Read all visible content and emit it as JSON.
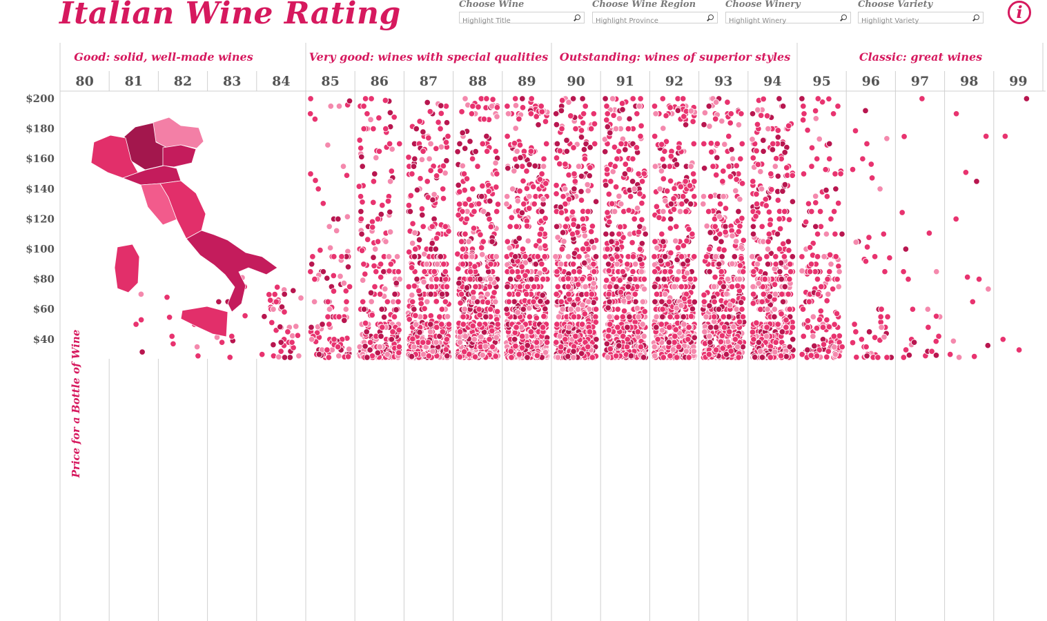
{
  "title": "Italian Wine Rating",
  "filters": [
    {
      "label": "Choose Wine",
      "placeholder": "Highlight Title"
    },
    {
      "label": "Choose Wine Region",
      "placeholder": "Highlight Province"
    },
    {
      "label": "Choose Winery",
      "placeholder": "Highlight Winery"
    },
    {
      "label": "Choose Variety",
      "placeholder": "Highlight Variety"
    }
  ],
  "info_icon": "info-icon",
  "map_icon": "italy-map",
  "colors": {
    "accent": "#d6195e",
    "dot_main": "#e8336f",
    "dot_light": "#f489ad",
    "dot_dark": "#b8164f",
    "map_regions": [
      "#a3174d",
      "#c41c5c",
      "#e22f6a",
      "#f25b8c",
      "#f37fa6"
    ]
  },
  "chart_data": {
    "type": "scatter",
    "ylabel": "Price for a Bottle of Wine",
    "y_ticks": [
      "$200",
      "$180",
      "$160",
      "$140",
      "$120",
      "$100",
      "$80",
      "$60",
      "$40"
    ],
    "y_tick_values": [
      200,
      180,
      160,
      140,
      120,
      100,
      80,
      60,
      40
    ],
    "ylim": [
      27,
      200
    ],
    "x_categories": [
      80,
      81,
      82,
      83,
      84,
      85,
      86,
      87,
      88,
      89,
      90,
      91,
      92,
      93,
      94,
      95,
      96,
      97,
      98,
      99
    ],
    "rating_groups": [
      {
        "label": "Good: solid, well-made wines",
        "scores": [
          80,
          84
        ]
      },
      {
        "label": "Very good: wines with special qualities",
        "scores": [
          85,
          89
        ]
      },
      {
        "label": "Outstanding: wines of superior styles",
        "scores": [
          90,
          94
        ]
      },
      {
        "label": "Classic: great wines",
        "scores": [
          95,
          99
        ]
      }
    ],
    "series_counts_estimate": [
      0,
      2,
      5,
      10,
      45,
      110,
      260,
      420,
      520,
      560,
      600,
      580,
      560,
      480,
      440,
      180,
      50,
      25,
      10,
      2
    ],
    "notable_points": [
      {
        "score": 81,
        "price": 53
      },
      {
        "score": 81,
        "price": 50
      },
      {
        "score": 82,
        "price": 50
      },
      {
        "score": 82,
        "price": 35
      },
      {
        "score": 82,
        "price": 37
      },
      {
        "score": 83,
        "price": 100
      },
      {
        "score": 83,
        "price": 81
      },
      {
        "score": 83,
        "price": 65
      },
      {
        "score": 85,
        "price": 149
      },
      {
        "score": 85,
        "price": 120
      },
      {
        "score": 87,
        "price": 180
      },
      {
        "score": 87,
        "price": 165
      },
      {
        "score": 89,
        "price": 200
      },
      {
        "score": 89,
        "price": 195
      },
      {
        "score": 90,
        "price": 200
      },
      {
        "score": 91,
        "price": 200
      },
      {
        "score": 95,
        "price": 200
      },
      {
        "score": 97,
        "price": 200
      },
      {
        "score": 98,
        "price": 190
      },
      {
        "score": 98,
        "price": 175
      },
      {
        "score": 98,
        "price": 151
      },
      {
        "score": 98,
        "price": 120
      },
      {
        "score": 99,
        "price": 200
      },
      {
        "score": 99,
        "price": 175
      }
    ],
    "grid": "vertical separators per score",
    "legend": "none"
  }
}
